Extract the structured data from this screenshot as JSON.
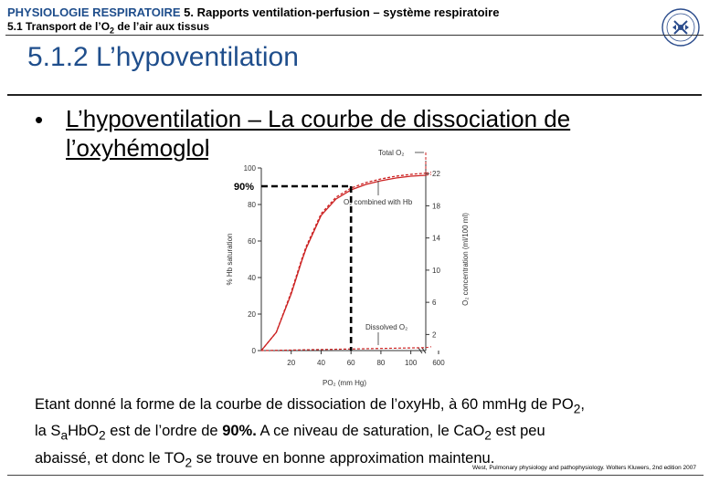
{
  "header": {
    "course": "PHYSIOLOGIE RESPIRATOIRE",
    "chapter": "5. Rapports ventilation-perfusion – système respiratoire",
    "section_prefix": "5.1 Transport de l’O",
    "section_sub": "2",
    "section_suffix": " de l’air aux tissus"
  },
  "title": "5.1.2 L’hypoventilation",
  "bullet": {
    "symbol": "•",
    "text": "L’hypoventilation – La courbe de dissociation de l’oxyhémoglobine"
  },
  "chart_data": {
    "type": "line",
    "xlabel": "PO₂ (mm Hg)",
    "ylabel_left": "% Hb saturation",
    "ylabel_right": "O₂ concentration (ml/100 ml)",
    "x_ticks": [
      "20",
      "40",
      "60",
      "80",
      "100",
      "600"
    ],
    "y_ticks": [
      "0",
      "20",
      "40",
      "60",
      "80",
      "100"
    ],
    "y2_ticks": [
      "2",
      "6",
      "10",
      "14",
      "18",
      "22"
    ],
    "xlim": [
      0,
      110
    ],
    "ylim": [
      0,
      100
    ],
    "y2lim": [
      0,
      22.7
    ],
    "annotation_90": "90%",
    "labels": {
      "total": "Total O₂",
      "combined": "O₂ combined with Hb",
      "dissolved": "Dissolved O₂"
    },
    "series": [
      {
        "name": "Total O₂",
        "points": [
          [
            0,
            0
          ],
          [
            10,
            10
          ],
          [
            20,
            32
          ],
          [
            27,
            50
          ],
          [
            30,
            57
          ],
          [
            40,
            75
          ],
          [
            50,
            84
          ],
          [
            60,
            89
          ],
          [
            70,
            92
          ],
          [
            80,
            94
          ],
          [
            90,
            95.5
          ],
          [
            100,
            96.5
          ],
          [
            110,
            97.2
          ]
        ]
      },
      {
        "name": "O₂ combined with Hb",
        "points": [
          [
            0,
            0
          ],
          [
            10,
            10
          ],
          [
            20,
            31
          ],
          [
            27,
            49
          ],
          [
            30,
            56
          ],
          [
            40,
            74
          ],
          [
            50,
            83
          ],
          [
            60,
            88
          ],
          [
            70,
            91
          ],
          [
            80,
            93
          ],
          [
            90,
            94.5
          ],
          [
            100,
            95.5
          ],
          [
            110,
            96
          ]
        ]
      },
      {
        "name": "Dissolved O₂",
        "points": [
          [
            0,
            0
          ],
          [
            110,
            1.6
          ]
        ]
      }
    ],
    "reference": {
      "x": 60,
      "y": 90
    },
    "colors": {
      "curve": "#cc2222",
      "axis": "#333333",
      "reference": "#000000"
    }
  },
  "body_text": {
    "l1_pre": "Etant donné la forme de la courbe de dissociation de l’oxyHb, à 60 mmHg de PO",
    "l1_sub": "2",
    "l1_post": ",",
    "l2_a": "la S",
    "l2_sub1": "a",
    "l2_b": "HbO",
    "l2_sub2": "2",
    "l2_c": " est de l’ordre de ",
    "l2_bold": "90%.",
    "l2_d": " A ce niveau de saturation, le CaO",
    "l2_sub3": "2",
    "l2_e": " est peu",
    "l3_a": "abaissé, et donc le TO",
    "l3_sub": "2",
    "l3_b": " se trouve en bonne approximation maintenu."
  },
  "citation": "West, Pulmonary physiology and pathophysiology. Wolters Kluwers, 2nd edition 2007"
}
